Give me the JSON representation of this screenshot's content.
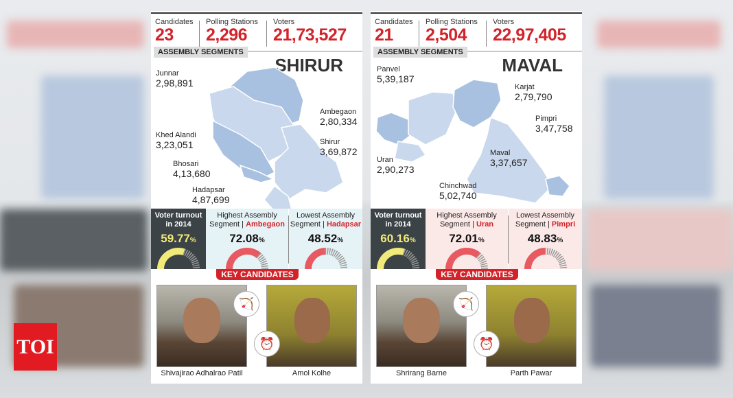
{
  "colors": {
    "accent": "#d2232a",
    "turnout_bg": "#3c4346",
    "turnout_value": "#f1ea7b",
    "shirur_bg": "#e6f3f6",
    "maval_bg": "#fbe9e8",
    "map_fill": "#a9c1e0"
  },
  "labels": {
    "candidates": "Candidates",
    "polling_stations": "Polling Stations",
    "voters": "Voters",
    "assembly_segments": "ASSEMBLY SEGMENTS",
    "voter_turnout": "Voter turnout in 2014",
    "highest": "Highest Assembly Segment |",
    "lowest": "Lowest Assembly Segment |",
    "key_candidates": "KEY CANDIDATES",
    "percent": "%"
  },
  "panels": [
    {
      "constituency": "SHIRUR",
      "candidates": "23",
      "polling_stations": "2,296",
      "voters": "21,73,527",
      "segments": [
        {
          "name": "Junnar",
          "value": "2,98,891"
        },
        {
          "name": "Ambegaon",
          "value": "2,80,334"
        },
        {
          "name": "Khed Alandi",
          "value": "3,23,051"
        },
        {
          "name": "Shirur",
          "value": "3,69,872"
        },
        {
          "name": "Bhosari",
          "value": "4,13,680"
        },
        {
          "name": "Hadapsar",
          "value": "4,87,699"
        }
      ],
      "turnout": "59.77",
      "turnout_pct": 59.77,
      "highest_name": "Ambegaon",
      "highest": "72.08",
      "highest_pct": 72.08,
      "lowest_name": "Hadapsar",
      "lowest": "48.52",
      "lowest_pct": 48.52,
      "candidates_list": [
        {
          "name": "Shivajirao Adhalrao Patil",
          "party_icon": "bow-arrow-icon"
        },
        {
          "name": "Amol Kolhe",
          "party_icon": "clock-icon"
        }
      ]
    },
    {
      "constituency": "MAVAL",
      "candidates": "21",
      "polling_stations": "2,504",
      "voters": "22,97,405",
      "segments": [
        {
          "name": "Panvel",
          "value": "5,39,187"
        },
        {
          "name": "Karjat",
          "value": "2,79,790"
        },
        {
          "name": "Pimpri",
          "value": "3,47,758"
        },
        {
          "name": "Uran",
          "value": "2,90,273"
        },
        {
          "name": "Maval",
          "value": "3,37,657"
        },
        {
          "name": "Chinchwad",
          "value": "5,02,740"
        }
      ],
      "turnout": "60.16",
      "turnout_pct": 60.16,
      "highest_name": "Uran",
      "highest": "72.01",
      "highest_pct": 72.01,
      "lowest_name": "Pimpri",
      "lowest": "48.83",
      "lowest_pct": 48.83,
      "candidates_list": [
        {
          "name": "Shrirang Barne",
          "party_icon": "bow-arrow-icon"
        },
        {
          "name": "Parth Pawar",
          "party_icon": "clock-icon"
        }
      ]
    }
  ],
  "logo": "TOI"
}
